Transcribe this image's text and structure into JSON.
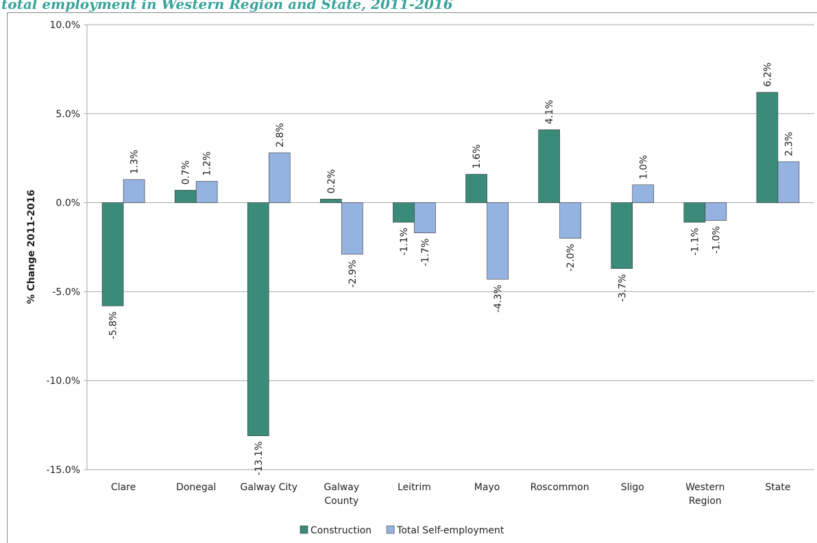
{
  "chart_data": {
    "type": "bar",
    "title": "total employment in Western Region and State, 2011-2016",
    "y_label": "% Change 2011-2016",
    "categories": [
      "Clare",
      "Donegal",
      "Galway City",
      "Galway County",
      "Leitrim",
      "Mayo",
      "Roscommon",
      "Sligo",
      "Western Region",
      "State"
    ],
    "series": [
      {
        "name": "Construction",
        "color": "#3b8b7a",
        "values": [
          -5.8,
          0.7,
          -13.1,
          0.2,
          -1.1,
          1.6,
          4.1,
          -3.7,
          -1.1,
          6.2
        ],
        "value_labels": [
          "-5.8%",
          "0.7%",
          "-13.1%",
          "0.2%",
          "-1.1%",
          "1.6%",
          "4.1%",
          "-3.7%",
          "-1.1%",
          "6.2%"
        ]
      },
      {
        "name": "Total Self-employment",
        "color": "#95b3e0",
        "values": [
          1.3,
          1.2,
          2.8,
          -2.9,
          -1.7,
          -4.3,
          -2.0,
          1.0,
          -1.0,
          2.3
        ],
        "value_labels": [
          "1.3%",
          "1.2%",
          "2.8%",
          "-2.9%",
          "-1.7%",
          "-4.3%",
          "-2.0%",
          "1.0%",
          "-1.0%",
          "2.3%"
        ]
      }
    ],
    "ylim": [
      -15,
      10
    ],
    "yticks": [
      {
        "value": -15,
        "label": "-15.0%"
      },
      {
        "value": -10,
        "label": "-10.0%"
      },
      {
        "value": -5,
        "label": "-5.0%"
      },
      {
        "value": 0,
        "label": "0.0%"
      },
      {
        "value": 5,
        "label": "5.0%"
      },
      {
        "value": 10,
        "label": "10.0%"
      }
    ],
    "grid": true,
    "legend": "bottom"
  }
}
